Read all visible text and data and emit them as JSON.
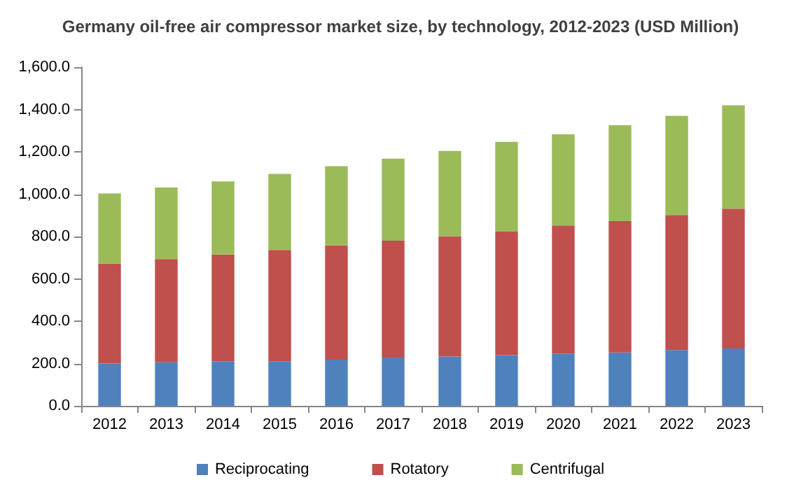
{
  "chart_data": {
    "type": "bar",
    "title": "Germany oil-free air compressor market size, by technology, 2012-2023 (USD Million)",
    "categories": [
      "2012",
      "2013",
      "2014",
      "2015",
      "2016",
      "2017",
      "2018",
      "2019",
      "2020",
      "2021",
      "2022",
      "2023"
    ],
    "stacked": true,
    "series": [
      {
        "name": "Reciprocating",
        "color": "#4f81bd",
        "values": [
          200,
          206,
          211,
          211,
          218,
          228,
          233,
          240,
          247,
          252,
          264,
          271
        ]
      },
      {
        "name": "Rotatory",
        "color": "#c0504d",
        "values": [
          472,
          487,
          504,
          525,
          540,
          552,
          568,
          583,
          605,
          621,
          638,
          660
        ]
      },
      {
        "name": "Centrifugal",
        "color": "#9bbb59",
        "values": [
          331,
          338,
          345,
          360,
          374,
          388,
          403,
          424,
          431,
          453,
          468,
          489
        ]
      }
    ],
    "ylim": [
      0,
      1600
    ],
    "yticks": [
      {
        "value": 0,
        "label": "0.0"
      },
      {
        "value": 200,
        "label": "200.0"
      },
      {
        "value": 400,
        "label": "400.0"
      },
      {
        "value": 600,
        "label": "600.0"
      },
      {
        "value": 800,
        "label": "800.0"
      },
      {
        "value": 1000,
        "label": "1,000.0"
      },
      {
        "value": 1200,
        "label": "1,200.0"
      },
      {
        "value": 1400,
        "label": "1,400.0"
      },
      {
        "value": 1600,
        "label": "1,600.0"
      }
    ],
    "grid": false,
    "legend": "bottom"
  }
}
